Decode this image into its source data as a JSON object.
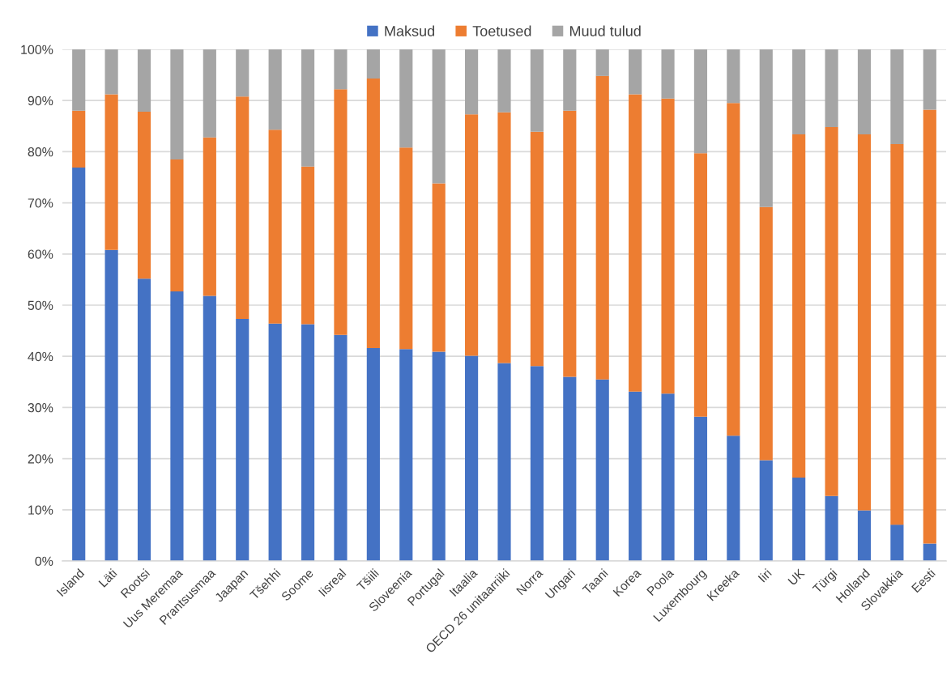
{
  "chart_data": {
    "type": "bar",
    "stacked": true,
    "categories": [
      "Island",
      "Läti",
      "Rootsi",
      "Uus Meremaa",
      "Prantsusmaa",
      "Jaapan",
      "Tšehhi",
      "Soome",
      "Iisreal",
      "Tšiili",
      "Sloveenia",
      "Portugal",
      "Itaalia",
      "OECD 26 unitaarriiki",
      "Norra",
      "Ungari",
      "Taani",
      "Korea",
      "Poola",
      "Luxembourg",
      "Kreeka",
      "Iiri",
      "UK",
      "Türgi",
      "Holland",
      "Slovakkia",
      "Eesti"
    ],
    "series": [
      {
        "name": "Maksud",
        "color": "#4472c4",
        "values": [
          76.9,
          60.8,
          55.2,
          52.7,
          51.8,
          47.3,
          46.4,
          46.3,
          44.2,
          41.6,
          41.4,
          40.9,
          40.1,
          38.7,
          38.1,
          36.0,
          35.5,
          33.1,
          32.7,
          28.2,
          24.5,
          19.7,
          16.3,
          12.7,
          9.9,
          7.1,
          3.4
        ]
      },
      {
        "name": "Toetused",
        "color": "#ed7d31",
        "values": [
          11.1,
          30.4,
          32.6,
          25.8,
          31.0,
          43.5,
          37.9,
          30.8,
          48.0,
          52.7,
          39.4,
          32.9,
          47.2,
          49.0,
          45.8,
          52.0,
          59.3,
          58.1,
          57.7,
          51.5,
          65.0,
          49.5,
          67.1,
          72.1,
          73.5,
          74.4,
          84.8
        ]
      },
      {
        "name": "Muud tulud",
        "color": "#a5a5a5",
        "values": [
          12.0,
          8.8,
          12.2,
          21.5,
          17.2,
          9.2,
          15.7,
          22.9,
          7.8,
          5.7,
          19.2,
          26.2,
          12.7,
          12.3,
          16.1,
          12.0,
          5.2,
          8.8,
          9.6,
          20.3,
          10.5,
          30.8,
          16.6,
          15.2,
          16.6,
          18.5,
          11.8
        ]
      }
    ],
    "ylim": [
      0,
      100
    ],
    "yticks": [
      {
        "value": 0,
        "label": "0%"
      },
      {
        "value": 10,
        "label": "10%"
      },
      {
        "value": 20,
        "label": "20%"
      },
      {
        "value": 30,
        "label": "30%"
      },
      {
        "value": 40,
        "label": "40%"
      },
      {
        "value": 50,
        "label": "50%"
      },
      {
        "value": 60,
        "label": "60%"
      },
      {
        "value": 70,
        "label": "70%"
      },
      {
        "value": 80,
        "label": "80%"
      },
      {
        "value": 90,
        "label": "90%"
      },
      {
        "value": 100,
        "label": "100%"
      }
    ],
    "grid": "y",
    "legend": "top"
  }
}
